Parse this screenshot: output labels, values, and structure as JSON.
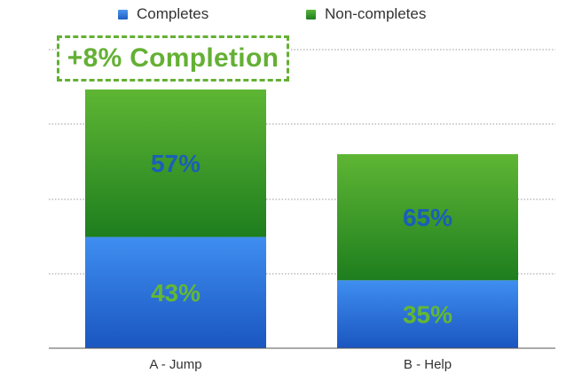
{
  "colors": {
    "completes": "#2a78e0",
    "non_completes": "#2e9a2c",
    "callout": "#64b034",
    "label_on_green": "#1a5fb8",
    "label_on_blue": "#63b832"
  },
  "legend": {
    "items": [
      {
        "label": "Completes",
        "color": "#2a78e0"
      },
      {
        "label": "Non-completes",
        "color": "#2e9a2c"
      }
    ]
  },
  "callout": {
    "text": "+8% Completion"
  },
  "chart_data": {
    "type": "bar",
    "stacked": true,
    "categories": [
      "A - Jump",
      "B - Help"
    ],
    "series": [
      {
        "name": "Completes",
        "values": [
          43,
          35
        ],
        "labels": [
          "43%",
          "35%"
        ]
      },
      {
        "name": "Non-completes",
        "values": [
          57,
          65
        ],
        "labels": [
          "57%",
          "65%"
        ]
      }
    ],
    "relative_totals": [
      1.0,
      0.75
    ],
    "title": "",
    "xlabel": "",
    "ylabel": "",
    "grid": true,
    "legend_position": "top"
  }
}
